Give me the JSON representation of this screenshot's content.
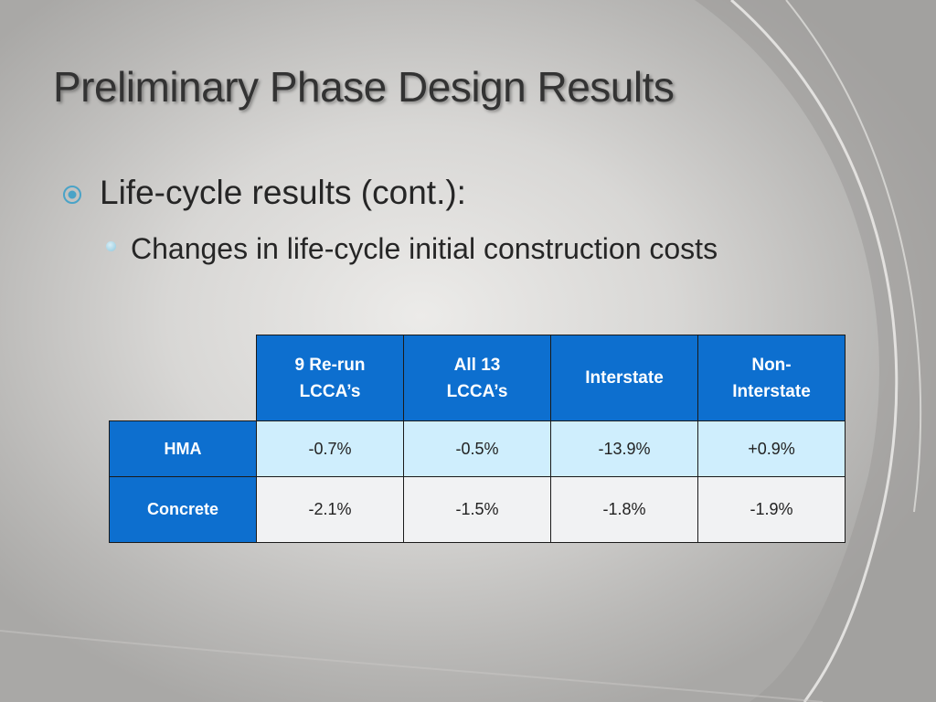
{
  "slide": {
    "title": "Preliminary Phase Design Results",
    "bullet_level1": "Life-cycle results (cont.):",
    "bullet_level2": "Changes in life-cycle initial construction costs"
  },
  "table": {
    "columns": [
      "9 Re-run LCCA’s",
      "All 13 LCCA’s",
      "Interstate",
      "Non-Interstate"
    ],
    "column_lines": [
      [
        "9 Re-run",
        "LCCA’s"
      ],
      [
        "All 13",
        "LCCA’s"
      ],
      [
        "Interstate"
      ],
      [
        "Non-",
        "Interstate"
      ]
    ],
    "rows": [
      {
        "label": "HMA",
        "values": [
          "-0.7%",
          "-0.5%",
          "-13.9%",
          "+0.9%"
        ]
      },
      {
        "label": "Concrete",
        "values": [
          "-2.1%",
          "-1.5%",
          "-1.8%",
          "-1.9%"
        ]
      }
    ]
  },
  "colors": {
    "header_blue": "#0d6fcf",
    "row1_fill": "#cfeefd",
    "row2_fill": "#f1f2f3",
    "bullet_accent": "#4aa3c7"
  },
  "icons": {
    "level1_bullet": "target-circle-icon",
    "level2_bullet": "dot-icon"
  }
}
